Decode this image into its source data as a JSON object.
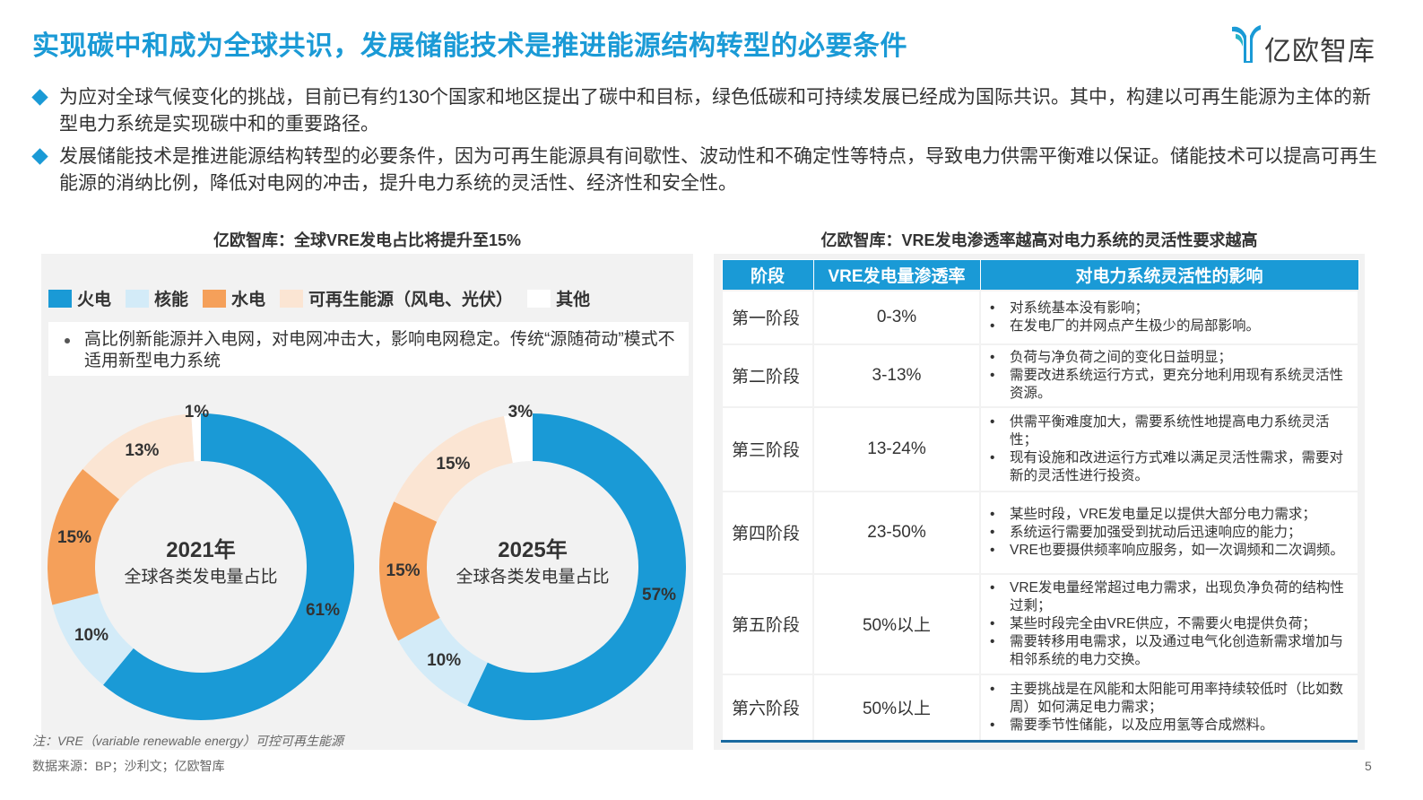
{
  "header": {
    "title": "实现碳中和成为全球共识，发展储能技术是推进能源结构转型的必要条件",
    "logo_text": "亿欧智库"
  },
  "bullets": [
    "为应对全球气候变化的挑战，目前已有约130个国家和地区提出了碳中和目标，绿色低碳和可持续发展已经成为国际共识。其中，构建以可再生能源为主体的新型电力系统是实现碳中和的重要路径。",
    "发展储能技术是推进能源结构转型的必要条件，因为可再生能源具有间歇性、波动性和不确定性等特点，导致电力供需平衡难以保证。储能技术可以提高可再生能源的消纳比例，降低对电网的冲击，提升电力系统的灵活性、经济性和安全性。"
  ],
  "left_chart": {
    "subtitle": "亿欧智库：全球VRE发电占比将提升至15%",
    "legend": [
      {
        "label": "火电",
        "color": "#1a9ad6"
      },
      {
        "label": "核能",
        "color": "#d3ebf8"
      },
      {
        "label": "水电",
        "color": "#f5a05a"
      },
      {
        "label": "可再生能源（风电、光伏）",
        "color": "#fbe5d3"
      },
      {
        "label": "其他",
        "color": "#ffffff"
      }
    ],
    "note": "高比例新能源并入电网，对电网冲击大，影响电网稳定。传统“源随荷动”模式不适用新型电力系统"
  },
  "chart_data": [
    {
      "type": "pie",
      "title": "2021年",
      "subtitle": "全球各类发电量占比",
      "categories": [
        "火电",
        "核能",
        "水电",
        "可再生能源（风电、光伏）",
        "其他"
      ],
      "values": [
        61,
        10,
        15,
        13,
        1
      ],
      "labels": [
        "61%",
        "10%",
        "15%",
        "13%",
        "1%"
      ],
      "colors": [
        "#1a9ad6",
        "#d3ebf8",
        "#f5a05a",
        "#fbe5d3",
        "#ffffff"
      ]
    },
    {
      "type": "pie",
      "title": "2025年",
      "subtitle": "全球各类发电量占比",
      "categories": [
        "火电",
        "核能",
        "水电",
        "可再生能源（风电、光伏）",
        "其他"
      ],
      "values": [
        57,
        10,
        15,
        15,
        3
      ],
      "labels": [
        "57%",
        "10%",
        "15%",
        "15%",
        "3%"
      ],
      "colors": [
        "#1a9ad6",
        "#d3ebf8",
        "#f5a05a",
        "#fbe5d3",
        "#ffffff"
      ]
    }
  ],
  "right_table": {
    "subtitle": "亿欧智库：VRE发电渗透率越高对电力系统的灵活性要求越高",
    "headers": [
      "阶段",
      "VRE发电量渗透率",
      "对电力系统灵活性的影响"
    ],
    "rows": [
      {
        "stage": "第一阶段",
        "rate": "0-3%",
        "items": [
          "对系统基本没有影响；",
          "在发电厂的并网点产生极少的局部影响。"
        ]
      },
      {
        "stage": "第二阶段",
        "rate": "3-13%",
        "items": [
          "负荷与净负荷之间的变化日益明显；",
          "需要改进系统运行方式，更充分地利用现有系统灵活性资源。"
        ]
      },
      {
        "stage": "第三阶段",
        "rate": "13-24%",
        "items": [
          "供需平衡难度加大，需要系统性地提高电力系统灵活性；",
          "现有设施和改进运行方式难以满足灵活性需求，需要对新的灵活性进行投资。"
        ]
      },
      {
        "stage": "第四阶段",
        "rate": "23-50%",
        "items": [
          "某些时段，VRE发电量足以提供大部分电力需求；",
          "系统运行需要加强受到扰动后迅速响应的能力；",
          "VRE也要摄供频率响应服务，如一次调频和二次调频。"
        ]
      },
      {
        "stage": "第五阶段",
        "rate": "50%以上",
        "items": [
          "VRE发电量经常超过电力需求，出现负净负荷的结构性过剩；",
          "某些时段完全由VRE供应，不需要火电提供负荷；",
          "需要转移用电需求，以及通过电气化创造新需求增加与相邻系统的电力交换。"
        ]
      },
      {
        "stage": "第六阶段",
        "rate": "50%以上",
        "items": [
          "主要挑战是在风能和太阳能可用率持续较低时（比如数周）如何满足电力需求；",
          "需要季节性储能，以及应用氢等合成燃料。"
        ]
      }
    ]
  },
  "footer": {
    "note": "注：VRE（variable renewable energy）可控可再生能源",
    "source": "数据来源：BP；沙利文；亿欧智库",
    "page": "5"
  }
}
